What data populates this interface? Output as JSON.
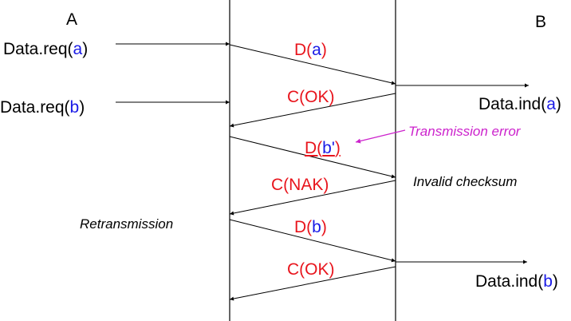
{
  "entities": {
    "left": "A",
    "right": "B"
  },
  "colors": {
    "frame": "#e8141c",
    "payload": "#1a1ae6",
    "error": "#cc22cc",
    "line": "#000000"
  },
  "requests": [
    {
      "prefix": "Data.req(",
      "arg": "a",
      "suffix": ")"
    },
    {
      "prefix": "Data.req(",
      "arg": "b",
      "suffix": ")"
    }
  ],
  "indications": [
    {
      "prefix": "Data.ind(",
      "arg": "a",
      "suffix": ")"
    },
    {
      "prefix": "Data.ind(",
      "arg": "b",
      "suffix": ")"
    }
  ],
  "frames": [
    {
      "prefix": "D(",
      "arg": "a",
      "suffix": ")"
    },
    {
      "text": "C(OK)"
    },
    {
      "prefix": "D(",
      "arg": "b'",
      "suffix": ")"
    },
    {
      "text": "C(NAK)"
    },
    {
      "prefix": "D(",
      "arg": "b",
      "suffix": ")"
    },
    {
      "text": "C(OK)"
    }
  ],
  "annotations": {
    "error": "Transmission error",
    "checksum": "Invalid checksum",
    "retransmission": "Retransmission"
  }
}
